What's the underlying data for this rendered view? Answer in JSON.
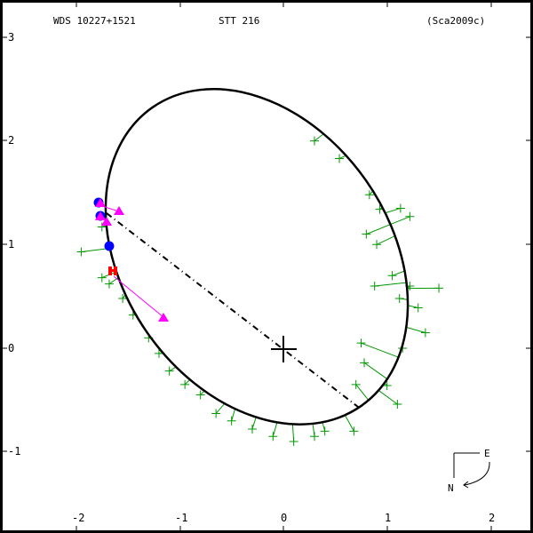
{
  "header": {
    "wds_id": "WDS 10227+1521",
    "discoverer": "STT 216",
    "reference": "(Sca2009c)"
  },
  "compass": {
    "east": "E",
    "north": "N"
  },
  "colors": {
    "orbit": "#000000",
    "residual": "#009900",
    "triangle": "#ff00ff",
    "circle": "#0000ff",
    "speckle": "#ff0000",
    "node_line": "#000000"
  },
  "chart_data": {
    "type": "scatter",
    "title": "WDS 10227+1521  STT 216  (Sca2009c)",
    "xlabel": "",
    "ylabel": "",
    "xlim": [
      -2.3,
      2.3
    ],
    "ylim": [
      -1.8,
      3.35
    ],
    "x_ticks": [
      -2,
      -1,
      0,
      1,
      2
    ],
    "y_ticks": [
      3,
      2,
      1,
      0,
      -1
    ],
    "x_tick_labels": [
      "-2",
      "-1",
      "0",
      "1",
      "2"
    ],
    "y_tick_labels": [
      "3",
      "2",
      "1",
      "0",
      "-1"
    ],
    "grid": false,
    "legend": null,
    "primary_star": {
      "x": 0,
      "y": 0,
      "marker": "cross"
    },
    "orbit_ellipse": {
      "center": [
        -0.26,
        0.88
      ],
      "semi_major": 1.76,
      "semi_minor": 1.29,
      "tilt_deg": -35
    },
    "line_of_nodes": {
      "from": [
        -1.71,
        1.3
      ],
      "to": [
        0.72,
        -0.57
      ],
      "style": "dash-dot"
    },
    "series": [
      {
        "name": "micrometer observations (residual crosses)",
        "marker": "+",
        "color": "#009900",
        "points": [
          [
            0.3,
            2.0
          ],
          [
            0.54,
            1.83
          ],
          [
            0.83,
            1.48
          ],
          [
            0.93,
            1.34
          ],
          [
            1.13,
            1.35
          ],
          [
            1.22,
            1.27
          ],
          [
            0.8,
            1.1
          ],
          [
            0.9,
            1.0
          ],
          [
            1.05,
            0.7
          ],
          [
            1.5,
            0.58
          ],
          [
            1.22,
            0.6
          ],
          [
            0.88,
            0.6
          ],
          [
            1.12,
            0.48
          ],
          [
            1.3,
            0.39
          ],
          [
            1.37,
            0.15
          ],
          [
            1.15,
            0.0
          ],
          [
            0.75,
            0.05
          ],
          [
            0.78,
            -0.14
          ],
          [
            0.7,
            -0.35
          ],
          [
            1.0,
            -0.36
          ],
          [
            1.1,
            -0.54
          ],
          [
            0.68,
            -0.8
          ],
          [
            0.4,
            -0.8
          ],
          [
            0.3,
            -0.85
          ],
          [
            0.1,
            -0.9
          ],
          [
            -0.1,
            -0.85
          ],
          [
            -0.3,
            -0.78
          ],
          [
            -0.5,
            -0.7
          ],
          [
            -0.65,
            -0.63
          ],
          [
            -0.8,
            -0.45
          ],
          [
            -0.95,
            -0.35
          ],
          [
            -1.1,
            -0.22
          ],
          [
            -1.2,
            -0.05
          ],
          [
            -1.3,
            0.1
          ],
          [
            -1.45,
            0.32
          ],
          [
            -1.55,
            0.48
          ],
          [
            -1.68,
            0.62
          ],
          [
            -1.75,
            0.68
          ],
          [
            -1.95,
            0.93
          ],
          [
            -1.75,
            1.17
          ]
        ]
      },
      {
        "name": "interferometric (filled circles)",
        "marker": "circle",
        "color": "#0000ff",
        "points": [
          [
            -1.8,
            1.4
          ],
          [
            -1.77,
            1.28
          ],
          [
            -1.7,
            0.98
          ]
        ]
      },
      {
        "name": "speckle (filled triangles)",
        "marker": "triangle",
        "color": "#ff00ff",
        "points": [
          [
            -1.78,
            1.42
          ],
          [
            -1.77,
            1.27
          ],
          [
            -1.7,
            1.22
          ],
          [
            -1.6,
            1.31
          ],
          [
            -1.16,
            0.3
          ]
        ]
      },
      {
        "name": "recent measure (square)",
        "marker": "square",
        "color": "#ff0000",
        "points": [
          [
            -1.65,
            0.75
          ]
        ]
      }
    ]
  }
}
